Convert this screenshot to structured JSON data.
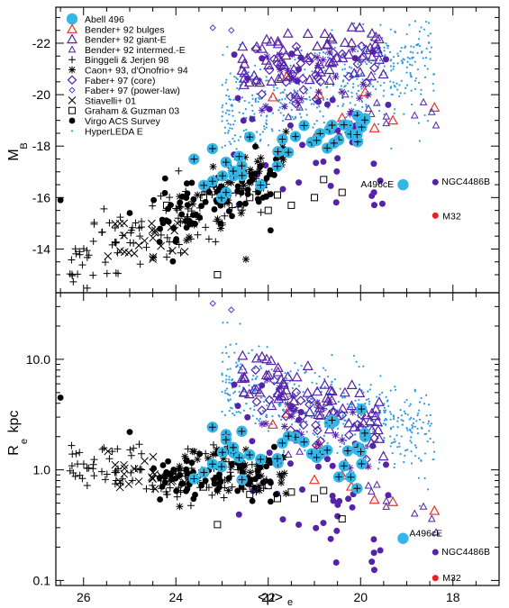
{
  "chart_data": [
    {
      "type": "scatter",
      "panel": "top",
      "ylabel": "M",
      "ylabel_sub": "B",
      "xlim": [
        26.6,
        17.0
      ],
      "ylim": [
        -12.3,
        -23.4
      ],
      "yticks": [
        -14,
        -16,
        -18,
        -20,
        -22
      ],
      "ytick_labels": [
        "-14",
        "-16",
        "-18",
        "-20",
        "-22"
      ],
      "legend": {
        "placement": "top-left",
        "entries": [
          {
            "label": "Abell 496",
            "marker": "big-circle",
            "color": "#35b6e6"
          },
          {
            "label": "Bender+ 92 bulges",
            "marker": "triangle",
            "color": "#e8332a"
          },
          {
            "label": "Bender+ 92 giant-E",
            "marker": "triangle",
            "color": "#5522aa"
          },
          {
            "label": "Bender+ 92 intermed.-E",
            "marker": "triangle-small",
            "color": "#5522aa"
          },
          {
            "label": "Binggeli & Jerjen 98",
            "marker": "plus",
            "color": "#000000"
          },
          {
            "label": "Caon+ 93, d'Onofrio+ 94",
            "marker": "asterisk",
            "color": "#000000"
          },
          {
            "label": "Faber+ 97 (core)",
            "marker": "diamond",
            "color": "#5522aa"
          },
          {
            "label": "Faber+ 97 (power-law)",
            "marker": "diamond-small",
            "color": "#6a35c2"
          },
          {
            "label": "Stiavelli+ 01",
            "marker": "cross",
            "color": "#000000"
          },
          {
            "label": "Graham & Guzman 03",
            "marker": "square",
            "color": "#000000"
          },
          {
            "label": "Virgo ACS Survey",
            "marker": "dot",
            "color": "#000000"
          },
          {
            "label": "HyperLEDA E",
            "marker": "tiny",
            "color": "#2e9be0"
          }
        ]
      },
      "annotations": [
        {
          "text": "A496cE",
          "x": 19.08,
          "y": -16.5
        },
        {
          "text": "NGC4486B",
          "x": 18.38,
          "y": -16.6
        },
        {
          "text": "M32",
          "x": 18.38,
          "y": -15.3
        }
      ]
    },
    {
      "type": "scatter",
      "panel": "bottom",
      "xlabel": "<μ>",
      "xlabel_sub": "e",
      "ylabel": "R",
      "ylabel_sub": "e",
      "ylabel_unit": "kpc",
      "scale_y": "log",
      "xlim": [
        26.6,
        17.0
      ],
      "ylim": [
        0.09,
        40
      ],
      "xticks": [
        26,
        24,
        22,
        20,
        18
      ],
      "xtick_labels": [
        "26",
        "24",
        "22",
        "20",
        "18"
      ],
      "yticks": [
        0.1,
        1.0,
        10.0
      ],
      "ytick_labels": [
        "0.1",
        "1.0",
        "10.0"
      ],
      "annotations": [
        {
          "text": "A496cE",
          "x": 19.08,
          "y": 0.24
        },
        {
          "text": "NGC4486B",
          "x": 18.38,
          "y": 0.18
        },
        {
          "text": "M32",
          "x": 18.38,
          "y": 0.105
        }
      ]
    }
  ]
}
